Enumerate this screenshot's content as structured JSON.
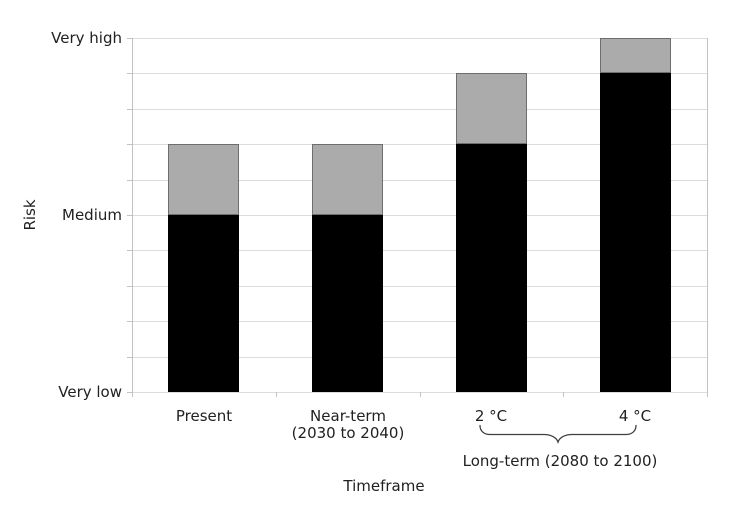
{
  "chart_data": {
    "type": "bar",
    "stacked": true,
    "title": "",
    "xlabel": "Timeframe",
    "ylabel": "Risk",
    "ylim": [
      0,
      10
    ],
    "grid": true,
    "grid_interval": 1,
    "legend": "none",
    "categories": [
      "Present",
      "Near-term (2030 to 2040)",
      "2 °C",
      "4 °C"
    ],
    "category_lines": [
      [
        "Present"
      ],
      [
        "Near-term",
        "(2030 to 2040)"
      ],
      [
        "2 °C"
      ],
      [
        "4 °C"
      ]
    ],
    "yticks": [
      {
        "value": 0,
        "label": "Very low"
      },
      {
        "value": 5,
        "label": "Medium"
      },
      {
        "value": 10,
        "label": "Very high"
      }
    ],
    "series": [
      {
        "label": "black segment",
        "color": "#000000",
        "values": [
          5,
          5,
          7,
          9
        ]
      },
      {
        "label": "gray segment",
        "color": "#ababab",
        "values": [
          2,
          2,
          2,
          1
        ]
      }
    ],
    "annotation": {
      "label": "Long-term (2080 to 2100)",
      "spans_categories": [
        "2 °C",
        "4 °C"
      ]
    },
    "colors": {
      "grid": "#dcdcdc",
      "axis": "#c2c2c2",
      "bar_border": "#6e6e6e",
      "text": "#212121",
      "brace": "#3f3f3f"
    }
  }
}
